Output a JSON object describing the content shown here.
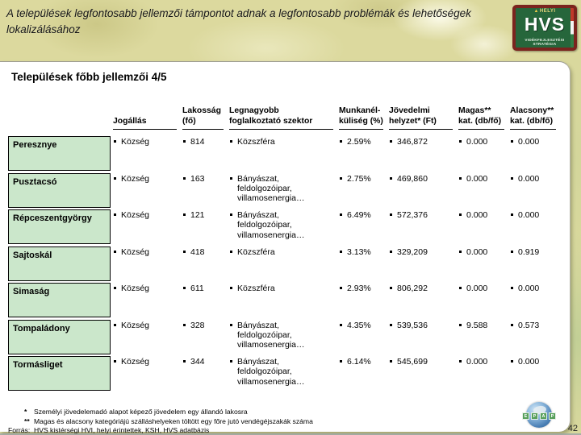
{
  "banner": {
    "headline": "A települések legfontosabb jellemzői támpontot adnak a legfontosabb problémák és lehetőségek lokalizálásához",
    "hvs_logo": {
      "top_label": "HELYI",
      "main_label": "HVS",
      "sub_label": "VIDÉKFEJLESZTÉSI STRATÉGIA"
    }
  },
  "page": {
    "title": "Települések főbb jellemzői 4/5",
    "number": "42"
  },
  "table": {
    "headers": {
      "settlement": "",
      "jogallas": "Jogállás",
      "lakossag": "Lakosság\n(fő)",
      "szektor": "Legnagyobb\nfoglalkoztató szektor",
      "munkanelkuliseg": "Munkanél-\nküliség (%)",
      "jovedelem": "Jövedelmi\nhelyzet* (Ft)",
      "magas": "Magas**\nkat. (db/fő)",
      "alacsony": "Alacsony**\nkat. (db/fő)"
    },
    "rows": [
      {
        "name": "Peresznye",
        "jogallas": "Község",
        "lakossag": "814",
        "szektor": "Közszféra",
        "munkanelkuliseg": "2.59%",
        "jovedelem": "346,872",
        "magas": "0.000",
        "alacsony": "0.000"
      },
      {
        "name": "Pusztacsó",
        "jogallas": "Község",
        "lakossag": "163",
        "szektor": "Bányászat,\nfeldolgozóipar,\nvillamosenergia…",
        "munkanelkuliseg": "2.75%",
        "jovedelem": "469,860",
        "magas": "0.000",
        "alacsony": "0.000"
      },
      {
        "name": "Répceszentgyörgy",
        "jogallas": "Község",
        "lakossag": "121",
        "szektor": "Bányászat,\nfeldolgozóipar,\nvillamosenergia…",
        "munkanelkuliseg": "6.49%",
        "jovedelem": "572,376",
        "magas": "0.000",
        "alacsony": "0.000"
      },
      {
        "name": "Sajtoskál",
        "jogallas": "Község",
        "lakossag": "418",
        "szektor": "Közszféra",
        "munkanelkuliseg": "3.13%",
        "jovedelem": "329,209",
        "magas": "0.000",
        "alacsony": "0.919"
      },
      {
        "name": "Simaság",
        "jogallas": "Község",
        "lakossag": "611",
        "szektor": "Közszféra",
        "munkanelkuliseg": "2.93%",
        "jovedelem": "806,292",
        "magas": "0.000",
        "alacsony": "0.000"
      },
      {
        "name": "Tompaládony",
        "jogallas": "Község",
        "lakossag": "328",
        "szektor": "Bányászat,\nfeldolgozóipar,\nvillamosenergia…",
        "munkanelkuliseg": "4.35%",
        "jovedelem": "539,536",
        "magas": "9.588",
        "alacsony": "0.573"
      },
      {
        "name": "Tormásliget",
        "jogallas": "Község",
        "lakossag": "344",
        "szektor": "Bányászat,\nfeldolgozóipar,\nvillamosenergia…",
        "munkanelkuliseg": "6.14%",
        "jovedelem": "545,699",
        "magas": "0.000",
        "alacsony": "0.000"
      }
    ]
  },
  "footnotes": {
    "items": [
      {
        "marker": "*",
        "text": "Személyi jövedelemadó alapot képező jövedelem egy állandó lakosra"
      },
      {
        "marker": "**",
        "text": "Magas és alacsony kategóriájú szálláshelyeken töltött egy főre jutó vendégéjszakák száma"
      }
    ],
    "source_label": "Forrás:",
    "source_text": "HVS kistérségi HVI, helyi érintettek, KSH, HVS adatbázis"
  },
  "footer_logo": {
    "letters": [
      "E",
      "P",
      "A",
      "P"
    ]
  },
  "colors": {
    "background": "#dcd99e",
    "panel": "#ffffff",
    "name_box_green": "#cbe7cb",
    "logo_green": "#26663b",
    "logo_maroon": "#7b241e",
    "band_green": "#58a05c",
    "globe_blue": "#4a7fb5"
  }
}
